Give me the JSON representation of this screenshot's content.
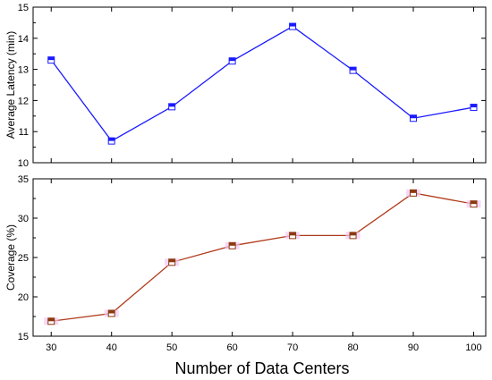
{
  "chart_data": [
    {
      "type": "line",
      "xlabel": "",
      "ylabel": "Average Latency (min)",
      "x": [
        30,
        40,
        50,
        60,
        70,
        80,
        90,
        100
      ],
      "xlim": [
        27,
        102
      ],
      "ylim": [
        10,
        15
      ],
      "yticks": [
        10,
        11,
        12,
        13,
        14,
        15
      ],
      "series": [
        {
          "values": [
            13.3,
            10.7,
            11.8,
            13.27,
            14.38,
            12.97,
            11.43,
            11.78
          ],
          "color": "#1a1aff",
          "marker_fill": "#1a1aff"
        }
      ],
      "grid": false,
      "legend": "none"
    },
    {
      "type": "line",
      "xlabel": "",
      "ylabel": "Coverage (%)",
      "x": [
        30,
        40,
        50,
        60,
        70,
        80,
        90,
        100
      ],
      "xlim": [
        27,
        102
      ],
      "ylim": [
        15,
        35
      ],
      "yticks": [
        15,
        20,
        25,
        30,
        35
      ],
      "series": [
        {
          "values": [
            16.9,
            17.9,
            24.4,
            26.5,
            27.8,
            27.8,
            33.2,
            31.8
          ],
          "color": "#b03a1a",
          "marker_fill": "#8b3a10"
        }
      ],
      "grid": false,
      "legend": "none"
    }
  ],
  "shared_x": {
    "label": "Number of Data Centers",
    "ticks": [
      30,
      40,
      50,
      60,
      70,
      80,
      90,
      100
    ]
  }
}
